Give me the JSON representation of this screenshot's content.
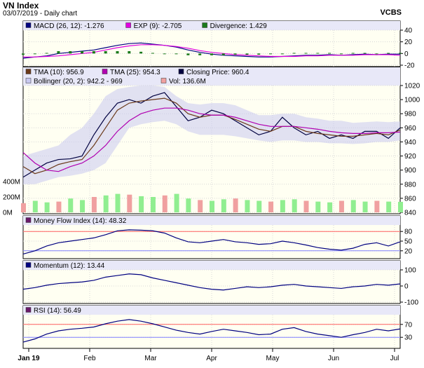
{
  "header": {
    "title": "VN Index",
    "subtitle": "03/07/2019 - Daily chart",
    "brand": "VCBS"
  },
  "colors": {
    "panel_bg": "#fffff2",
    "band_bg": "#e8e8f8",
    "bollinger_fill": "#c8c8f0",
    "close": "#000040",
    "tma10": "#6b3a1a",
    "tma25": "#b000b0",
    "macd": "#000080",
    "exp": "#e000e0",
    "div": "#1a7a1a",
    "vol_up": "#90ee90",
    "vol_down": "#f0a0a0",
    "overbought": "#ff6060",
    "oversold": "#8080ff"
  },
  "x_axis": {
    "labels": [
      "Jan 19",
      "Feb",
      "Mar",
      "Apr",
      "May",
      "Jun",
      "Jul"
    ]
  },
  "chart_data": [
    {
      "name": "macd-panel",
      "type": "line",
      "legend": [
        {
          "label": "MACD (26, 12): -1.276",
          "color": "#000080"
        },
        {
          "label": "EXP (9): -2.705",
          "color": "#e000e0"
        },
        {
          "label": "Divergence: 1.429",
          "color": "#1a7a1a"
        }
      ],
      "ylim": [
        -20,
        40
      ],
      "yticks": [
        "-20",
        "0",
        "20",
        "40"
      ],
      "x": [
        0,
        4,
        8,
        12,
        16,
        20,
        24,
        28,
        32,
        36,
        40,
        44,
        48,
        52,
        56,
        60,
        64,
        68,
        72,
        76,
        80,
        84,
        88,
        92,
        96,
        100,
        104,
        108,
        112,
        116,
        120,
        124,
        128
      ],
      "series": [
        {
          "name": "MACD",
          "values": [
            -8,
            -6,
            -4,
            0,
            2,
            4,
            6,
            10,
            14,
            17,
            18,
            16,
            14,
            11,
            6,
            2,
            -1,
            -3,
            -4,
            -5,
            -6,
            -6,
            -5,
            -4,
            -3,
            -3,
            -2,
            -3,
            -2,
            -1,
            -2,
            -1,
            -1
          ]
        },
        {
          "name": "EXP",
          "values": [
            -6,
            -6,
            -5,
            -4,
            -2,
            0,
            2,
            6,
            10,
            13,
            15,
            15,
            14,
            12,
            9,
            5,
            2,
            0,
            -2,
            -3,
            -4,
            -5,
            -5,
            -5,
            -4,
            -4,
            -3,
            -3,
            -3,
            -2,
            -2,
            -2,
            -3
          ]
        },
        {
          "name": "Divergence",
          "values": [
            -2,
            0,
            1,
            4,
            4,
            4,
            4,
            4,
            4,
            4,
            3,
            1,
            0,
            -1,
            -3,
            -3,
            -3,
            -3,
            -2,
            -2,
            -2,
            -1,
            0,
            1,
            1,
            1,
            1,
            0,
            1,
            1,
            0,
            1,
            1
          ]
        }
      ]
    },
    {
      "name": "price-panel",
      "type": "line",
      "legend": [
        {
          "label": "TMA (10): 956.9",
          "color": "#6b3a1a"
        },
        {
          "label": "TMA (25): 954.3",
          "color": "#b000b0"
        },
        {
          "label": "Closing Price: 960.4",
          "color": "#000040"
        },
        {
          "label": "Bollinger (20, 2): 942.2 - 969",
          "color": "#c8c8f0"
        },
        {
          "label": "Vol: 136.6M",
          "color": "#f0a0a0"
        }
      ],
      "ylim": [
        840,
        1020
      ],
      "yticks": [
        "840",
        "860",
        "880",
        "900",
        "920",
        "940",
        "960",
        "980",
        "1000",
        "1020"
      ],
      "vol_ticks": [
        "0M",
        "200M",
        "400M"
      ],
      "x": [
        0,
        4,
        8,
        12,
        16,
        20,
        24,
        28,
        32,
        36,
        40,
        44,
        48,
        52,
        56,
        60,
        64,
        68,
        72,
        76,
        80,
        84,
        88,
        92,
        96,
        100,
        104,
        108,
        112,
        116,
        120,
        124,
        128
      ],
      "series": [
        {
          "name": "Closing Price",
          "values": [
            890,
            900,
            910,
            915,
            916,
            920,
            950,
            975,
            995,
            1000,
            995,
            1005,
            1010,
            990,
            970,
            975,
            985,
            980,
            970,
            960,
            950,
            955,
            975,
            960,
            950,
            955,
            945,
            950,
            945,
            955,
            955,
            945,
            960
          ]
        },
        {
          "name": "TMA 10",
          "values": [
            905,
            895,
            900,
            908,
            912,
            915,
            935,
            960,
            985,
            995,
            998,
            1000,
            1002,
            995,
            980,
            975,
            978,
            978,
            972,
            965,
            958,
            955,
            962,
            962,
            955,
            952,
            950,
            948,
            948,
            950,
            952,
            950,
            957
          ]
        },
        {
          "name": "TMA 25",
          "values": [
            925,
            910,
            900,
            898,
            905,
            910,
            920,
            935,
            955,
            970,
            980,
            985,
            988,
            988,
            985,
            980,
            978,
            978,
            975,
            970,
            965,
            962,
            962,
            962,
            960,
            958,
            955,
            953,
            952,
            952,
            953,
            953,
            954
          ]
        },
        {
          "name": "Bollinger Upper",
          "values": [
            920,
            925,
            930,
            935,
            950,
            960,
            980,
            1005,
            1015,
            1018,
            1020,
            1020,
            1018,
            1005,
            995,
            993,
            995,
            995,
            992,
            985,
            978,
            978,
            980,
            980,
            975,
            973,
            970,
            970,
            967,
            968,
            969,
            968,
            969
          ]
        },
        {
          "name": "Bollinger Lower",
          "values": [
            880,
            880,
            885,
            890,
            892,
            895,
            900,
            910,
            935,
            960,
            965,
            968,
            970,
            965,
            955,
            950,
            950,
            950,
            948,
            945,
            942,
            940,
            942,
            942,
            940,
            940,
            938,
            938,
            937,
            938,
            940,
            940,
            942
          ]
        },
        {
          "name": "Volume",
          "values": [
            120,
            150,
            130,
            140,
            180,
            160,
            200,
            220,
            240,
            230,
            210,
            200,
            220,
            240,
            180,
            160,
            150,
            170,
            180,
            160,
            150,
            140,
            160,
            170,
            150,
            140,
            130,
            150,
            160,
            140,
            150,
            140,
            137
          ]
        }
      ]
    },
    {
      "name": "mfi-panel",
      "type": "line",
      "legend": [
        {
          "label": "Money Flow Index (14): 48.32",
          "color": "#6a1a6a"
        }
      ],
      "ylim": [
        0,
        100
      ],
      "yticks": [
        "20",
        "50",
        "80"
      ],
      "levels": [
        20,
        80
      ],
      "x": [
        0,
        4,
        8,
        12,
        16,
        20,
        24,
        28,
        32,
        36,
        40,
        44,
        48,
        52,
        56,
        60,
        64,
        68,
        72,
        76,
        80,
        84,
        88,
        92,
        96,
        100,
        104,
        108,
        112,
        116,
        120,
        124,
        128
      ],
      "series": [
        {
          "name": "MFI",
          "values": [
            10,
            20,
            35,
            45,
            50,
            55,
            60,
            70,
            82,
            85,
            84,
            82,
            75,
            60,
            48,
            45,
            50,
            55,
            48,
            45,
            40,
            42,
            50,
            45,
            38,
            30,
            25,
            22,
            28,
            40,
            45,
            35,
            48
          ]
        }
      ]
    },
    {
      "name": "momentum-panel",
      "type": "line",
      "legend": [
        {
          "label": "Momentum (12): 13.44",
          "color": "#000080"
        }
      ],
      "ylim": [
        -100,
        100
      ],
      "yticks": [
        "-100",
        "0",
        "100"
      ],
      "x": [
        0,
        4,
        8,
        12,
        16,
        20,
        24,
        28,
        32,
        36,
        40,
        44,
        48,
        52,
        56,
        60,
        64,
        68,
        72,
        76,
        80,
        84,
        88,
        92,
        96,
        100,
        104,
        108,
        112,
        116,
        120,
        124,
        128
      ],
      "series": [
        {
          "name": "Momentum",
          "values": [
            -20,
            -10,
            5,
            15,
            20,
            25,
            35,
            55,
            65,
            75,
            70,
            50,
            35,
            20,
            5,
            -10,
            -20,
            -25,
            -15,
            -5,
            -10,
            -5,
            5,
            10,
            0,
            -5,
            -10,
            -15,
            -5,
            0,
            10,
            5,
            13
          ]
        }
      ]
    },
    {
      "name": "rsi-panel",
      "type": "line",
      "legend": [
        {
          "label": "RSI (14): 56.49",
          "color": "#6a1a6a"
        }
      ],
      "ylim": [
        0,
        100
      ],
      "yticks": [
        "30",
        "70"
      ],
      "levels": [
        30,
        70
      ],
      "x": [
        0,
        4,
        8,
        12,
        16,
        20,
        24,
        28,
        32,
        36,
        40,
        44,
        48,
        52,
        56,
        60,
        64,
        68,
        72,
        76,
        80,
        84,
        88,
        92,
        96,
        100,
        104,
        108,
        112,
        116,
        120,
        124,
        128
      ],
      "series": [
        {
          "name": "RSI",
          "values": [
            15,
            25,
            40,
            50,
            55,
            58,
            62,
            72,
            80,
            85,
            80,
            72,
            62,
            52,
            45,
            40,
            48,
            55,
            50,
            45,
            38,
            40,
            55,
            60,
            48,
            40,
            35,
            30,
            38,
            45,
            55,
            50,
            56
          ]
        }
      ]
    }
  ]
}
